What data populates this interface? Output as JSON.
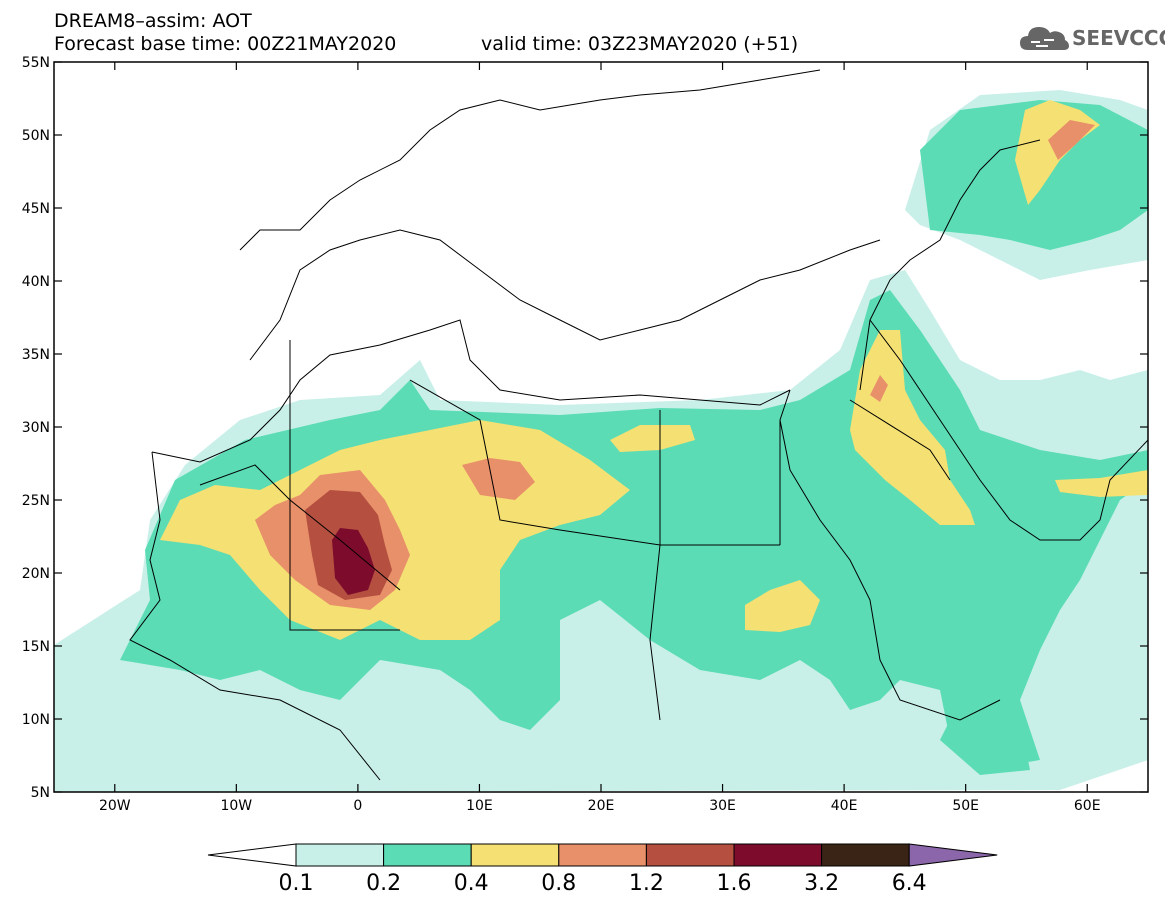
{
  "header": {
    "title_line1": "DREAM8–assim: AOT",
    "forecast_base": "Forecast base time: 00Z21MAY2020",
    "valid_time": "valid time: 03Z23MAY2020 (+51)"
  },
  "logo": {
    "text": "SEEVCCC",
    "icon": "cloud-icon"
  },
  "map": {
    "lon_range": [
      -25,
      65
    ],
    "lat_range": [
      5,
      55
    ],
    "lat_ticks": [
      "55N",
      "50N",
      "45N",
      "40N",
      "35N",
      "30N",
      "25N",
      "20N",
      "15N",
      "10N",
      "5N"
    ],
    "lon_ticks": [
      "20W",
      "10W",
      "0",
      "10E",
      "20E",
      "30E",
      "40E",
      "50E",
      "60E"
    ]
  },
  "colorbar": {
    "labels": [
      "0.1",
      "0.2",
      "0.4",
      "0.8",
      "1.2",
      "1.6",
      "3.2",
      "6.4"
    ],
    "colors": [
      "#c8f0e8",
      "#5bdcb4",
      "#f5e173",
      "#e8906a",
      "#b55040",
      "#7d0c2c",
      "#3a2415",
      "#8c66aa"
    ],
    "under_color": "#ffffff"
  },
  "colors": {
    "c01": "#c8f0e8",
    "c02": "#5bdcb4",
    "c04": "#f5e173",
    "c08": "#e8906a",
    "c12": "#b55040",
    "c16": "#7d0c2c"
  }
}
